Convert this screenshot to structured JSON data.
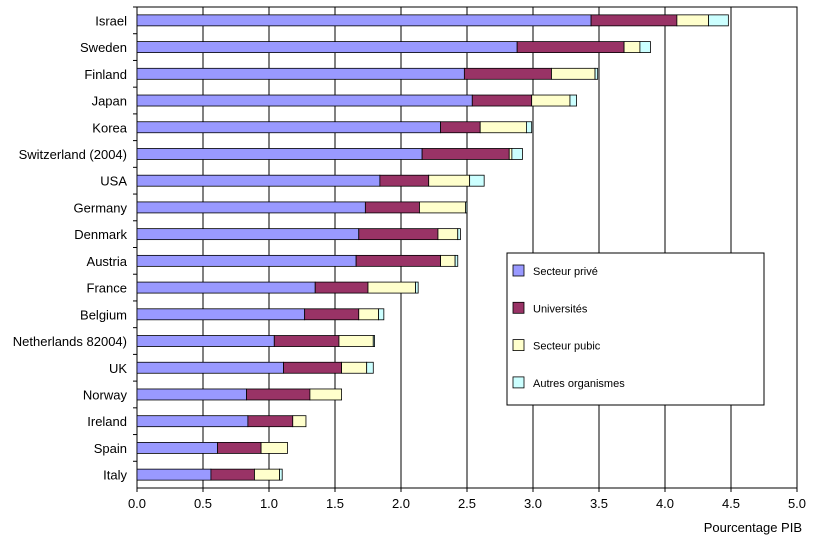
{
  "chart_data": {
    "type": "bar",
    "orientation": "horizontal",
    "stacked": true,
    "categories": [
      "Israel",
      "Sweden",
      "Finland",
      "Japan",
      "Korea",
      "Switzerland (2004)",
      "USA",
      "Germany",
      "Denmark",
      "Austria",
      "France",
      "Belgium",
      "Netherlands 82004)",
      "UK",
      "Norway",
      "Ireland",
      "Spain",
      "Italy"
    ],
    "series": [
      {
        "name": "Secteur privé",
        "color": "#9999FF",
        "values": [
          3.44,
          2.88,
          2.48,
          2.54,
          2.3,
          2.16,
          1.84,
          1.73,
          1.68,
          1.66,
          1.35,
          1.27,
          1.04,
          1.11,
          0.83,
          0.84,
          0.61,
          0.56
        ]
      },
      {
        "name": "Universités",
        "color": "#993366",
        "values": [
          0.65,
          0.81,
          0.66,
          0.45,
          0.3,
          0.66,
          0.37,
          0.41,
          0.6,
          0.64,
          0.4,
          0.41,
          0.49,
          0.44,
          0.48,
          0.34,
          0.33,
          0.33
        ]
      },
      {
        "name": "Secteur pubic",
        "color": "#FFFFCC",
        "values": [
          0.24,
          0.12,
          0.33,
          0.29,
          0.35,
          0.02,
          0.31,
          0.35,
          0.15,
          0.11,
          0.36,
          0.15,
          0.26,
          0.19,
          0.24,
          0.1,
          0.2,
          0.19
        ]
      },
      {
        "name": "Autres organismes",
        "color": "#CCFFFF",
        "values": [
          0.15,
          0.08,
          0.02,
          0.05,
          0.04,
          0.08,
          0.11,
          0.01,
          0.02,
          0.02,
          0.02,
          0.04,
          0.01,
          0.05,
          0.0,
          0.0,
          0.0,
          0.02
        ]
      }
    ],
    "xlabel": "Pourcentage PIB",
    "xlim": [
      0,
      5
    ],
    "xticks": [
      "0.0",
      "0.5",
      "1.0",
      "1.5",
      "2.0",
      "2.5",
      "3.0",
      "3.5",
      "4.0",
      "4.5",
      "5.0"
    ],
    "grid": "vertical",
    "legend_position": "right"
  }
}
